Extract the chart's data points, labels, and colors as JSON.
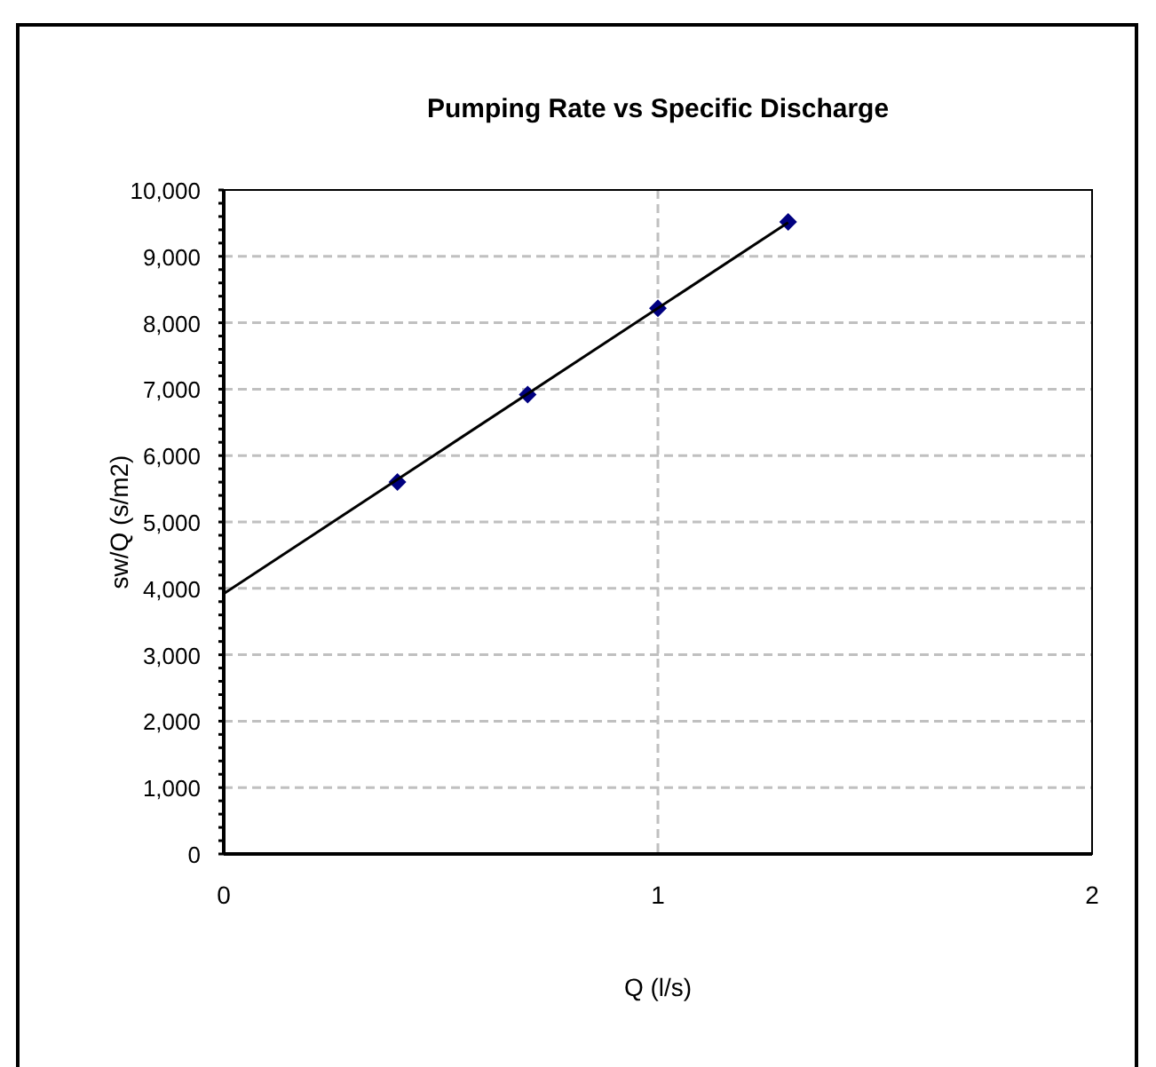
{
  "chart_data": {
    "type": "scatter",
    "title": "Pumping Rate vs Specific Discharge",
    "xlabel": "Q (l/s)",
    "ylabel": "sw/Q (s/m2)",
    "series": [
      {
        "color": "#000080",
        "marker": "diamond",
        "x": [
          0.4,
          0.7,
          1.0,
          1.3
        ],
        "values": [
          5600,
          6920,
          8220,
          9520
        ]
      },
      {
        "type": "line",
        "color": "#000000",
        "marker": "none",
        "x": [
          0,
          1.3
        ],
        "values": [
          3920,
          9510
        ]
      }
    ],
    "xlim": [
      0,
      2
    ],
    "xticks": [
      0,
      1,
      2
    ],
    "ylim": [
      0,
      10000
    ],
    "yticks": [
      {
        "value": 0,
        "label": "0"
      },
      {
        "value": 200,
        "label": null
      },
      {
        "value": 400,
        "label": null
      },
      {
        "value": 600,
        "label": null
      },
      {
        "value": 800,
        "label": null
      },
      {
        "value": 1000,
        "label": "1,000"
      },
      {
        "value": 1200,
        "label": null
      },
      {
        "value": 1400,
        "label": null
      },
      {
        "value": 1600,
        "label": null
      },
      {
        "value": 1800,
        "label": null
      },
      {
        "value": 2000,
        "label": "2,000"
      },
      {
        "value": 2200,
        "label": null
      },
      {
        "value": 2400,
        "label": null
      },
      {
        "value": 2600,
        "label": null
      },
      {
        "value": 2800,
        "label": null
      },
      {
        "value": 3000,
        "label": "3,000"
      },
      {
        "value": 3200,
        "label": null
      },
      {
        "value": 3400,
        "label": null
      },
      {
        "value": 3600,
        "label": null
      },
      {
        "value": 3800,
        "label": null
      },
      {
        "value": 4000,
        "label": "4,000"
      },
      {
        "value": 4200,
        "label": null
      },
      {
        "value": 4400,
        "label": null
      },
      {
        "value": 4600,
        "label": null
      },
      {
        "value": 4800,
        "label": null
      },
      {
        "value": 5000,
        "label": "5,000"
      },
      {
        "value": 5200,
        "label": null
      },
      {
        "value": 5400,
        "label": null
      },
      {
        "value": 5600,
        "label": null
      },
      {
        "value": 5800,
        "label": null
      },
      {
        "value": 6000,
        "label": "6,000"
      },
      {
        "value": 6200,
        "label": null
      },
      {
        "value": 6400,
        "label": null
      },
      {
        "value": 6600,
        "label": null
      },
      {
        "value": 6800,
        "label": null
      },
      {
        "value": 7000,
        "label": "7,000"
      },
      {
        "value": 7200,
        "label": null
      },
      {
        "value": 7400,
        "label": null
      },
      {
        "value": 7600,
        "label": null
      },
      {
        "value": 7800,
        "label": null
      },
      {
        "value": 8000,
        "label": "8,000"
      },
      {
        "value": 8200,
        "label": null
      },
      {
        "value": 8400,
        "label": null
      },
      {
        "value": 8600,
        "label": null
      },
      {
        "value": 8800,
        "label": null
      },
      {
        "value": 9000,
        "label": "9,000"
      },
      {
        "value": 9200,
        "label": null
      },
      {
        "value": 9400,
        "label": null
      },
      {
        "value": 9600,
        "label": null
      },
      {
        "value": 9800,
        "label": null
      },
      {
        "value": 10000,
        "label": "10,000"
      }
    ],
    "grid": true,
    "line_style": "solid"
  }
}
